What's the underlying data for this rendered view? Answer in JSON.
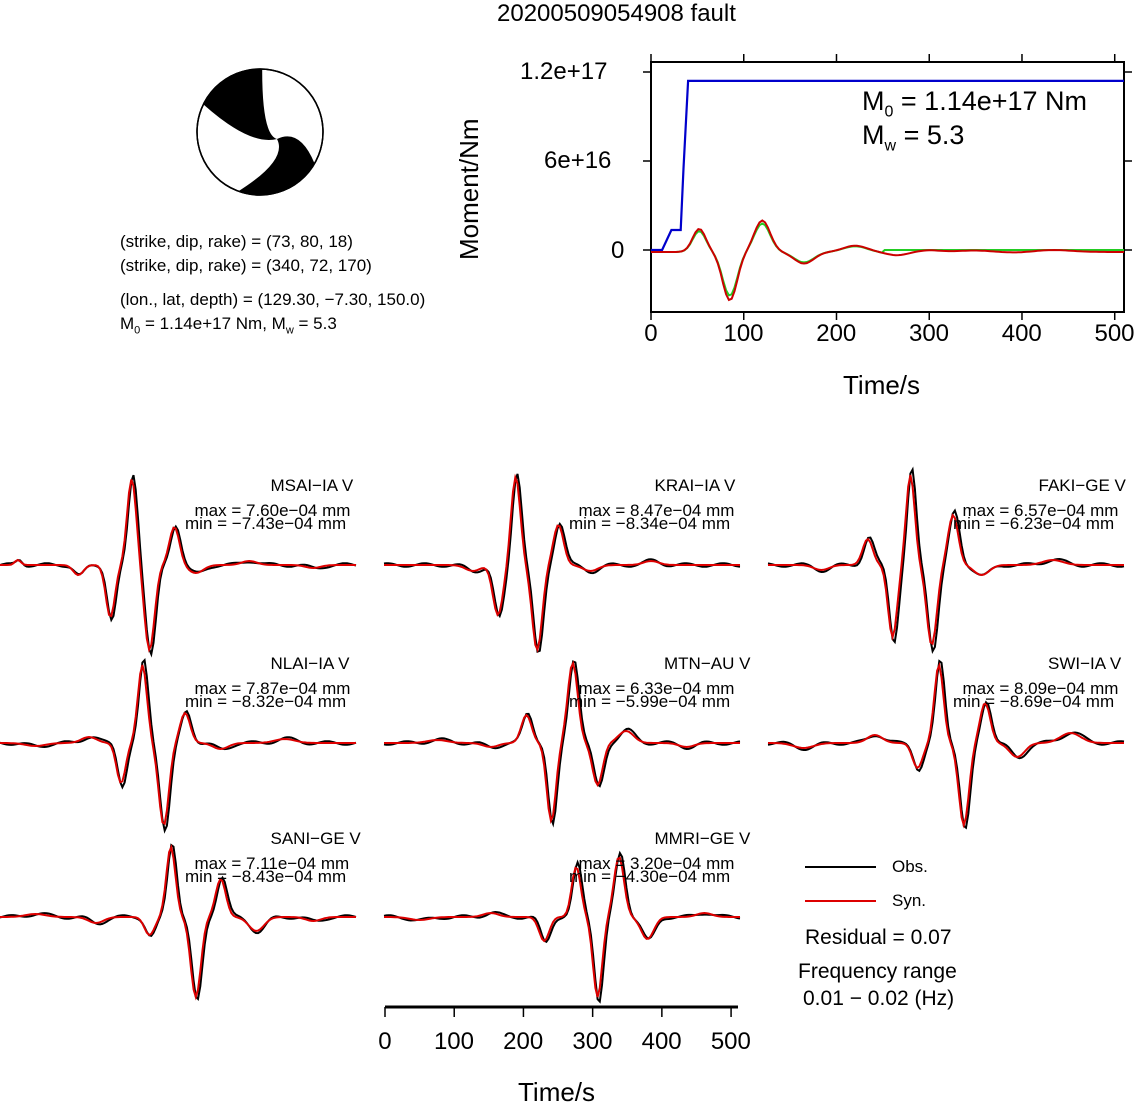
{
  "title": "20200509054908 fault",
  "mechanism": {
    "np1": "(strike, dip, rake) = (73, 80, 18)",
    "np2": "(strike, dip, rake) = (340, 72, 170)",
    "location": "(lon., lat, depth) = (129.30, −7.30, 150.0)",
    "moment_prefix": "M",
    "moment_sub": "0",
    "moment_value": " = 1.14e+17 Nm, M",
    "mw_sub": "w",
    "mw_value": " = 5.3"
  },
  "moment_plot": {
    "ylabel": "Moment/Nm",
    "xlabel": "Time/s",
    "yticks": [
      "1.2e+17",
      "6e+16",
      "0"
    ],
    "xticks": [
      "0",
      "100",
      "200",
      "300",
      "400",
      "500"
    ],
    "m0_prefix": "M",
    "m0_sub": "0",
    "m0_value": " = 1.14e+17 Nm",
    "mw_prefix": "M",
    "mw_sub": "w",
    "mw_value": " = 5.3",
    "colors": {
      "moment": "#0000cc",
      "green": "#22cc22",
      "red": "#cc0000"
    }
  },
  "stations": [
    {
      "name": "MSAI−IA V",
      "max": "max = 7.60e−04 mm",
      "min": "min = −7.43e−04 mm"
    },
    {
      "name": "KRAI−IA V",
      "max": "max = 8.47e−04 mm",
      "min": "min = −8.34e−04 mm"
    },
    {
      "name": "FAKI−GE V",
      "max": "max = 6.57e−04 mm",
      "min": "min = −6.23e−04 mm"
    },
    {
      "name": "NLAI−IA V",
      "max": "max = 7.87e−04 mm",
      "min": "min = −8.32e−04 mm"
    },
    {
      "name": "MTN−AU V",
      "max": "max = 6.33e−04 mm",
      "min": "min = −5.99e−04 mm"
    },
    {
      "name": "SWI−IA V",
      "max": "max = 8.09e−04 mm",
      "min": "min = −8.69e−04 mm"
    },
    {
      "name": "SANI−GE V",
      "max": "max = 7.11e−04 mm",
      "min": "min = −8.43e−04 mm"
    },
    {
      "name": "MMRI−GE V",
      "max": "max = 3.20e−04 mm",
      "min": "min = −4.30e−04 mm"
    }
  ],
  "waveform_axis": {
    "xlabel": "Time/s",
    "xticks": [
      "0",
      "100",
      "200",
      "300",
      "400",
      "500"
    ]
  },
  "legend": {
    "obs": "Obs.",
    "syn": "Syn.",
    "obs_color": "#000000",
    "syn_color": "#dd0000"
  },
  "residual": "Residual = 0.07",
  "frequency_label": "Frequency range",
  "frequency_value": "0.01 − 0.02 (Hz)",
  "chart_data": [
    {
      "type": "line",
      "title": "",
      "xlabel": "Time/s",
      "ylabel": "Moment/Nm",
      "xlim": [
        0,
        510
      ],
      "ylim": [
        -3e+16,
        1.25e+17
      ],
      "series": [
        {
          "name": "",
          "color": "#0000cc",
          "x": [
            0,
            12,
            22,
            32,
            35,
            40,
            510
          ],
          "y": [
            0,
            0,
            1.35e+16,
            1.35e+16,
            5.5e+16,
            1.14e+17,
            1.14e+17
          ]
        }
      ]
    },
    {
      "type": "line",
      "title": "",
      "xlabel": "Time/s",
      "xlim": [
        0,
        510
      ],
      "series": [
        {
          "name": "Obs.",
          "color": "#000000"
        },
        {
          "name": "Syn.",
          "color": "#dd0000"
        }
      ]
    }
  ]
}
